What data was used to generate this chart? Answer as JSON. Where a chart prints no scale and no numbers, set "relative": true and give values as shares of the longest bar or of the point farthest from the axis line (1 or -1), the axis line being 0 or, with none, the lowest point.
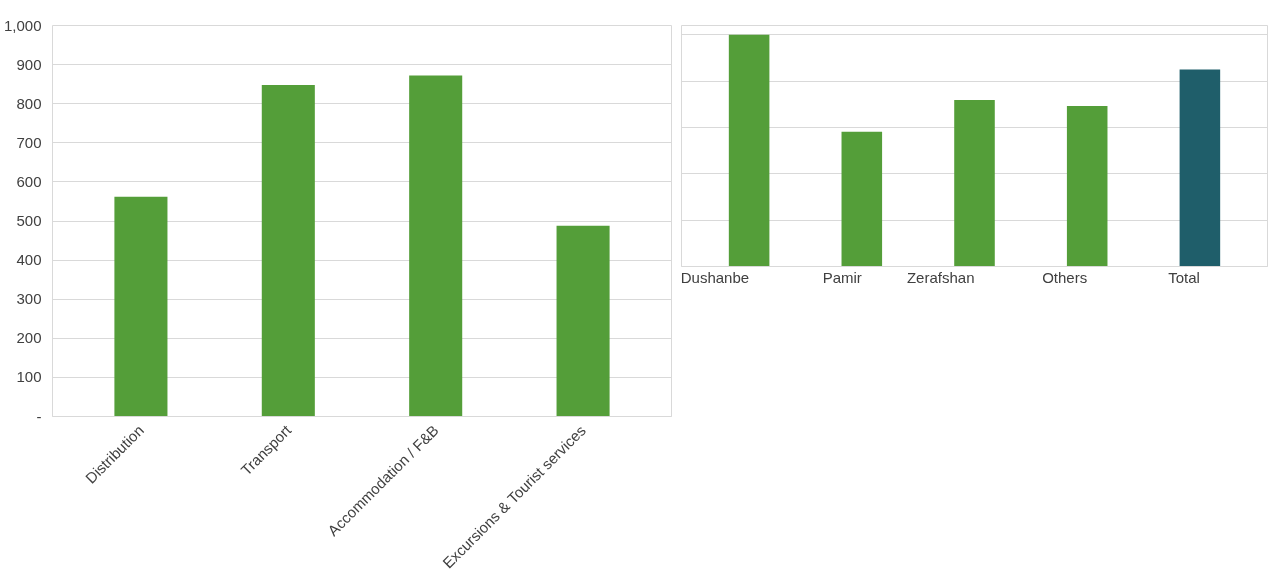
{
  "chart_data": [
    {
      "type": "bar",
      "categories": [
        "Distribution",
        "Transport",
        "Accommodation / F&B",
        "Excursions & Tourist services"
      ],
      "values": [
        562,
        848,
        872,
        488
      ],
      "color": "#549e39",
      "ylim": [
        0,
        1000
      ],
      "yticks": [
        {
          "value": 0,
          "label": "-"
        },
        100,
        200,
        300,
        400,
        500,
        600,
        700,
        800,
        900,
        {
          "value": 1000,
          "label": "1,000"
        }
      ],
      "grid": "y"
    },
    {
      "type": "bar",
      "categories": [
        "Dushanbe",
        "Pamir",
        "Zerafshan",
        "Others",
        "Total"
      ],
      "values": [
        1,
        0.582,
        0.718,
        0.693,
        0.85
      ],
      "colors": [
        "#549e39",
        "#549e39",
        "#549e39",
        "#549e39",
        "#1f5e6a"
      ],
      "relative": true,
      "grid": "y"
    }
  ]
}
